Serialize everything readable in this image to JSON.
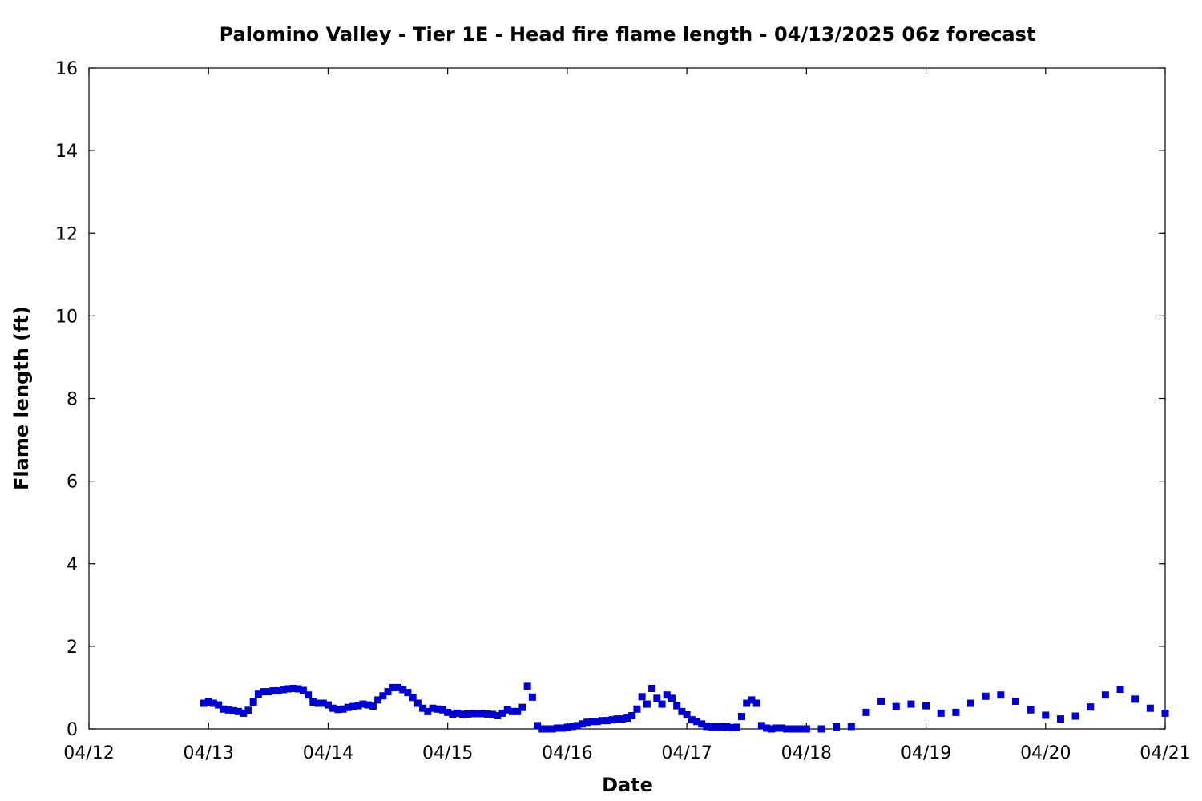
{
  "chart_data": {
    "type": "scatter",
    "title": "Palomino Valley - Tier 1E - Head fire flame length - 04/13/2025 06z forecast",
    "xlabel": "Date",
    "ylabel": "Flame length (ft)",
    "x_unit": "date (2025, UTC)",
    "xlim": [
      "2025-04-12T00:00",
      "2025-04-21T00:00"
    ],
    "ylim": [
      0,
      16
    ],
    "x_ticks": [
      {
        "date": "2025-04-12T00:00",
        "label": "04/12"
      },
      {
        "date": "2025-04-13T00:00",
        "label": "04/13"
      },
      {
        "date": "2025-04-14T00:00",
        "label": "04/14"
      },
      {
        "date": "2025-04-15T00:00",
        "label": "04/15"
      },
      {
        "date": "2025-04-16T00:00",
        "label": "04/16"
      },
      {
        "date": "2025-04-17T00:00",
        "label": "04/17"
      },
      {
        "date": "2025-04-18T00:00",
        "label": "04/18"
      },
      {
        "date": "2025-04-19T00:00",
        "label": "04/19"
      },
      {
        "date": "2025-04-20T00:00",
        "label": "04/20"
      },
      {
        "date": "2025-04-21T00:00",
        "label": "04/21"
      }
    ],
    "y_ticks": [
      "0",
      "2",
      "4",
      "6",
      "8",
      "10",
      "12",
      "14",
      "16"
    ],
    "y_tick_values": [
      0,
      2,
      4,
      6,
      8,
      10,
      12,
      14,
      16
    ],
    "grid": false,
    "marker": "square",
    "color": "#0000cc",
    "series": [
      {
        "points": [
          [
            "2025-04-12T23:00",
            0.62
          ],
          [
            "2025-04-13T00:00",
            0.65
          ],
          [
            "2025-04-13T01:00",
            0.62
          ],
          [
            "2025-04-13T02:00",
            0.58
          ],
          [
            "2025-04-13T03:00",
            0.48
          ],
          [
            "2025-04-13T04:00",
            0.46
          ],
          [
            "2025-04-13T05:00",
            0.44
          ],
          [
            "2025-04-13T06:00",
            0.42
          ],
          [
            "2025-04-13T07:00",
            0.38
          ],
          [
            "2025-04-13T08:00",
            0.45
          ],
          [
            "2025-04-13T09:00",
            0.65
          ],
          [
            "2025-04-13T10:00",
            0.84
          ],
          [
            "2025-04-13T11:00",
            0.9
          ],
          [
            "2025-04-13T12:00",
            0.9
          ],
          [
            "2025-04-13T13:00",
            0.92
          ],
          [
            "2025-04-13T14:00",
            0.92
          ],
          [
            "2025-04-13T15:00",
            0.95
          ],
          [
            "2025-04-13T16:00",
            0.97
          ],
          [
            "2025-04-13T17:00",
            0.98
          ],
          [
            "2025-04-13T18:00",
            0.97
          ],
          [
            "2025-04-13T19:00",
            0.93
          ],
          [
            "2025-04-13T20:00",
            0.82
          ],
          [
            "2025-04-13T21:00",
            0.65
          ],
          [
            "2025-04-13T22:00",
            0.62
          ],
          [
            "2025-04-13T23:00",
            0.62
          ],
          [
            "2025-04-14T00:00",
            0.58
          ],
          [
            "2025-04-14T01:00",
            0.5
          ],
          [
            "2025-04-14T02:00",
            0.47
          ],
          [
            "2025-04-14T03:00",
            0.48
          ],
          [
            "2025-04-14T04:00",
            0.52
          ],
          [
            "2025-04-14T05:00",
            0.54
          ],
          [
            "2025-04-14T06:00",
            0.56
          ],
          [
            "2025-04-14T07:00",
            0.6
          ],
          [
            "2025-04-14T08:00",
            0.58
          ],
          [
            "2025-04-14T09:00",
            0.55
          ],
          [
            "2025-04-14T10:00",
            0.7
          ],
          [
            "2025-04-14T11:00",
            0.8
          ],
          [
            "2025-04-14T12:00",
            0.9
          ],
          [
            "2025-04-14T13:00",
            1.0
          ],
          [
            "2025-04-14T14:00",
            1.0
          ],
          [
            "2025-04-14T15:00",
            0.95
          ],
          [
            "2025-04-14T16:00",
            0.88
          ],
          [
            "2025-04-14T17:00",
            0.76
          ],
          [
            "2025-04-14T18:00",
            0.62
          ],
          [
            "2025-04-14T19:00",
            0.5
          ],
          [
            "2025-04-14T20:00",
            0.42
          ],
          [
            "2025-04-14T21:00",
            0.5
          ],
          [
            "2025-04-14T22:00",
            0.48
          ],
          [
            "2025-04-14T23:00",
            0.46
          ],
          [
            "2025-04-15T00:00",
            0.4
          ],
          [
            "2025-04-15T01:00",
            0.35
          ],
          [
            "2025-04-15T02:00",
            0.38
          ],
          [
            "2025-04-15T03:00",
            0.35
          ],
          [
            "2025-04-15T04:00",
            0.36
          ],
          [
            "2025-04-15T05:00",
            0.37
          ],
          [
            "2025-04-15T06:00",
            0.37
          ],
          [
            "2025-04-15T07:00",
            0.37
          ],
          [
            "2025-04-15T08:00",
            0.36
          ],
          [
            "2025-04-15T09:00",
            0.35
          ],
          [
            "2025-04-15T10:00",
            0.32
          ],
          [
            "2025-04-15T11:00",
            0.38
          ],
          [
            "2025-04-15T12:00",
            0.46
          ],
          [
            "2025-04-15T13:00",
            0.42
          ],
          [
            "2025-04-15T14:00",
            0.42
          ],
          [
            "2025-04-15T15:00",
            0.52
          ],
          [
            "2025-04-15T16:00",
            1.03
          ],
          [
            "2025-04-15T17:00",
            0.77
          ],
          [
            "2025-04-15T18:00",
            0.08
          ],
          [
            "2025-04-15T19:00",
            0.0
          ],
          [
            "2025-04-15T20:00",
            0.0
          ],
          [
            "2025-04-15T21:00",
            0.0
          ],
          [
            "2025-04-15T22:00",
            0.02
          ],
          [
            "2025-04-15T23:00",
            0.02
          ],
          [
            "2025-04-16T00:00",
            0.04
          ],
          [
            "2025-04-16T01:00",
            0.06
          ],
          [
            "2025-04-16T02:00",
            0.08
          ],
          [
            "2025-04-16T03:00",
            0.12
          ],
          [
            "2025-04-16T04:00",
            0.16
          ],
          [
            "2025-04-16T05:00",
            0.18
          ],
          [
            "2025-04-16T06:00",
            0.18
          ],
          [
            "2025-04-16T07:00",
            0.2
          ],
          [
            "2025-04-16T08:00",
            0.2
          ],
          [
            "2025-04-16T09:00",
            0.22
          ],
          [
            "2025-04-16T10:00",
            0.24
          ],
          [
            "2025-04-16T11:00",
            0.24
          ],
          [
            "2025-04-16T12:00",
            0.26
          ],
          [
            "2025-04-16T13:00",
            0.32
          ],
          [
            "2025-04-16T14:00",
            0.48
          ],
          [
            "2025-04-16T15:00",
            0.78
          ],
          [
            "2025-04-16T16:00",
            0.6
          ],
          [
            "2025-04-16T17:00",
            0.98
          ],
          [
            "2025-04-16T18:00",
            0.74
          ],
          [
            "2025-04-16T19:00",
            0.6
          ],
          [
            "2025-04-16T20:00",
            0.82
          ],
          [
            "2025-04-16T21:00",
            0.74
          ],
          [
            "2025-04-16T22:00",
            0.56
          ],
          [
            "2025-04-16T23:00",
            0.42
          ],
          [
            "2025-04-17T00:00",
            0.34
          ],
          [
            "2025-04-17T01:00",
            0.22
          ],
          [
            "2025-04-17T02:00",
            0.18
          ],
          [
            "2025-04-17T03:00",
            0.12
          ],
          [
            "2025-04-17T04:00",
            0.06
          ],
          [
            "2025-04-17T05:00",
            0.05
          ],
          [
            "2025-04-17T06:00",
            0.05
          ],
          [
            "2025-04-17T07:00",
            0.05
          ],
          [
            "2025-04-17T08:00",
            0.05
          ],
          [
            "2025-04-17T09:00",
            0.03
          ],
          [
            "2025-04-17T10:00",
            0.04
          ],
          [
            "2025-04-17T11:00",
            0.3
          ],
          [
            "2025-04-17T12:00",
            0.62
          ],
          [
            "2025-04-17T13:00",
            0.7
          ],
          [
            "2025-04-17T14:00",
            0.62
          ],
          [
            "2025-04-17T15:00",
            0.08
          ],
          [
            "2025-04-17T16:00",
            0.02
          ],
          [
            "2025-04-17T17:00",
            0.0
          ],
          [
            "2025-04-17T18:00",
            0.02
          ],
          [
            "2025-04-17T19:00",
            0.02
          ],
          [
            "2025-04-17T20:00",
            0.0
          ],
          [
            "2025-04-17T21:00",
            0.0
          ],
          [
            "2025-04-17T22:00",
            0.0
          ],
          [
            "2025-04-17T23:00",
            0.0
          ],
          [
            "2025-04-18T00:00",
            0.0
          ],
          [
            "2025-04-18T03:00",
            0.0
          ],
          [
            "2025-04-18T06:00",
            0.05
          ],
          [
            "2025-04-18T09:00",
            0.06
          ],
          [
            "2025-04-18T12:00",
            0.4
          ],
          [
            "2025-04-18T15:00",
            0.67
          ],
          [
            "2025-04-18T18:00",
            0.54
          ],
          [
            "2025-04-18T21:00",
            0.6
          ],
          [
            "2025-04-19T00:00",
            0.56
          ],
          [
            "2025-04-19T03:00",
            0.38
          ],
          [
            "2025-04-19T06:00",
            0.4
          ],
          [
            "2025-04-19T09:00",
            0.62
          ],
          [
            "2025-04-19T12:00",
            0.79
          ],
          [
            "2025-04-19T15:00",
            0.82
          ],
          [
            "2025-04-19T18:00",
            0.67
          ],
          [
            "2025-04-19T21:00",
            0.46
          ],
          [
            "2025-04-20T00:00",
            0.33
          ],
          [
            "2025-04-20T03:00",
            0.24
          ],
          [
            "2025-04-20T06:00",
            0.31
          ],
          [
            "2025-04-20T09:00",
            0.53
          ],
          [
            "2025-04-20T12:00",
            0.82
          ],
          [
            "2025-04-20T15:00",
            0.96
          ],
          [
            "2025-04-20T18:00",
            0.72
          ],
          [
            "2025-04-20T21:00",
            0.5
          ],
          [
            "2025-04-21T00:00",
            0.38
          ]
        ]
      }
    ]
  }
}
